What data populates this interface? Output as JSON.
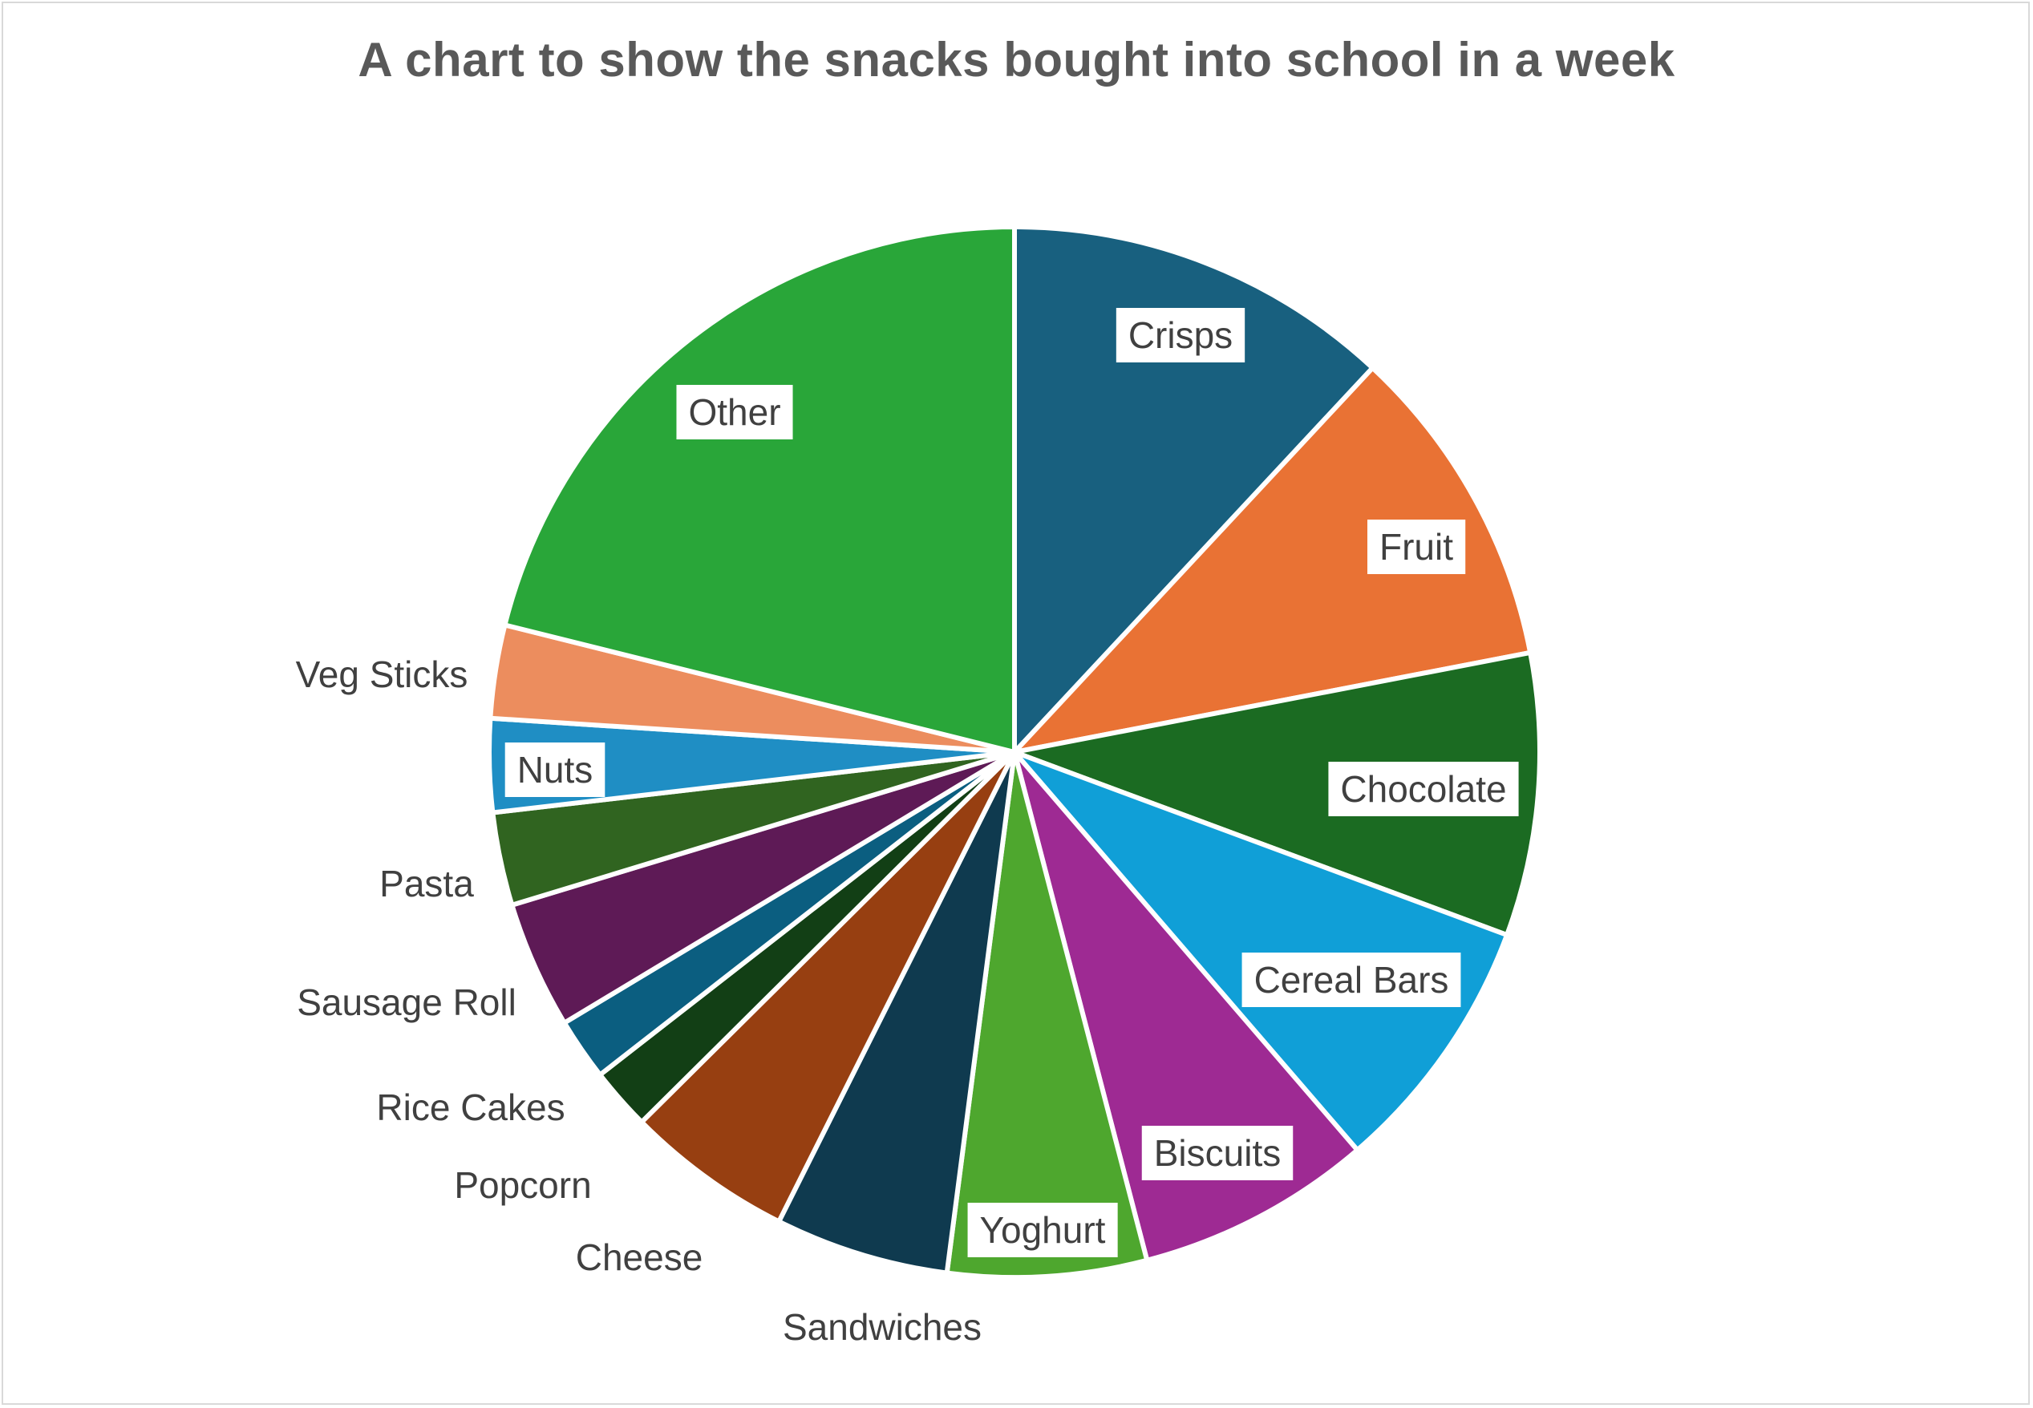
{
  "chart_data": {
    "type": "pie",
    "title": "A chart to show the snacks bought into school in a week",
    "start_angle_deg": 0,
    "direction": "clockwise",
    "slices": [
      {
        "label": "Crisps",
        "value": 12.5,
        "color": "#18607f",
        "boxed": true
      },
      {
        "label": "Fruit",
        "value": 10.5,
        "color": "#e97234",
        "boxed": true
      },
      {
        "label": "Chocolate",
        "value": 9.1,
        "color": "#1b6b22",
        "boxed": true
      },
      {
        "label": "Cereal Bars",
        "value": 8.4,
        "color": "#109fd7",
        "boxed": true
      },
      {
        "label": "Biscuits",
        "value": 7.6,
        "color": "#9e2a93",
        "boxed": true
      },
      {
        "label": "Yoghurt",
        "value": 6.4,
        "color": "#4ea72e",
        "boxed": true
      },
      {
        "label": "Sandwiches",
        "value": 5.6,
        "color": "#0f3a4f",
        "boxed": false
      },
      {
        "label": "Cheese",
        "value": 5.4,
        "color": "#973f11",
        "boxed": false
      },
      {
        "label": "Popcorn",
        "value": 2.0,
        "color": "#123f15",
        "boxed": false
      },
      {
        "label": "Rice Cakes",
        "value": 2.0,
        "color": "#0b5e80",
        "boxed": false
      },
      {
        "label": "Sausage Roll",
        "value": 4.1,
        "color": "#5e1a56",
        "boxed": false
      },
      {
        "label": "Pasta",
        "value": 3.0,
        "color": "#306420",
        "boxed": false
      },
      {
        "label": "Nuts",
        "value": 3.0,
        "color": "#1f8ec4",
        "boxed": true
      },
      {
        "label": "Veg Sticks",
        "value": 3.0,
        "color": "#ec8d5e",
        "boxed": false
      },
      {
        "label": "Other",
        "value": 22.1,
        "color": "#29a639",
        "boxed": true
      }
    ]
  }
}
